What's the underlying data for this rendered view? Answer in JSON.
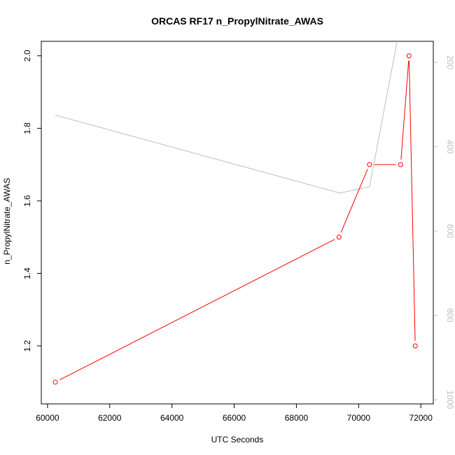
{
  "chart_data": {
    "type": "line",
    "title": "ORCAS RF17 n_PropylNitrate_AWAS",
    "xlabel": "UTC Seconds",
    "ylabel": "n_PropylNitrate_AWAS",
    "xlim": [
      59800,
      72400
    ],
    "ylim": [
      1.04,
      2.04
    ],
    "y2lim": [
      1010,
      150
    ],
    "x_ticks": [
      60000,
      62000,
      64000,
      66000,
      68000,
      70000,
      72000
    ],
    "x_tick_labels": [
      "60000",
      "62000",
      "64000",
      "66000",
      "68000",
      "70000",
      "72000"
    ],
    "y_ticks": [
      1.2,
      1.4,
      1.6,
      1.8,
      2.0
    ],
    "y_tick_labels": [
      "1.2",
      "1.4",
      "1.6",
      "1.8",
      "2.0"
    ],
    "y2_ticks": [
      200,
      400,
      600,
      800,
      1000
    ],
    "y2_tick_labels": [
      "200",
      "400",
      "600",
      "800",
      "1000"
    ],
    "series": [
      {
        "axis": "left",
        "color": "#ff0000",
        "markers": true,
        "x": [
          60250,
          69370,
          70350,
          71350,
          71620,
          71820
        ],
        "y": [
          1.1,
          1.5,
          1.7,
          1.7,
          2.0,
          1.2
        ]
      },
      {
        "axis": "right",
        "color": "#bebebe",
        "markers": false,
        "x": [
          60250,
          69400,
          70350,
          71250
        ],
        "y": [
          325,
          510,
          495,
          145
        ]
      }
    ]
  }
}
